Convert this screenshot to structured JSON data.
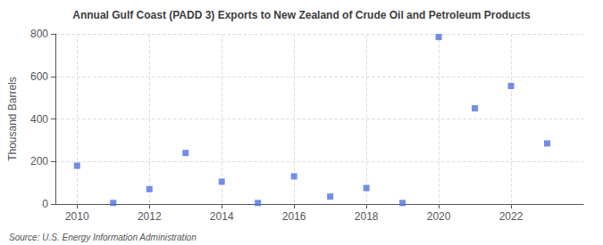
{
  "chart_data": {
    "type": "scatter",
    "title": "Annual Gulf Coast (PADD 3) Exports to New Zealand of Crude Oil and Petroleum Products",
    "ylabel": "Thousand Barrels",
    "annotations": [
      "Source: U.S. Energy Information Administration"
    ],
    "x": [
      2010,
      2011,
      2012,
      2013,
      2014,
      2015,
      2016,
      2017,
      2018,
      2019,
      2020,
      2021,
      2022,
      2023
    ],
    "values": [
      180,
      5,
      70,
      240,
      105,
      5,
      130,
      35,
      75,
      5,
      785,
      450,
      555,
      285
    ],
    "marker": "square",
    "xlim": [
      2009.4,
      2024.0
    ],
    "xticks": [
      2010,
      2012,
      2014,
      2016,
      2018,
      2020,
      2022
    ],
    "ylim": [
      0,
      800
    ],
    "yticks": [
      0,
      200,
      400,
      600,
      800
    ],
    "grid": true
  }
}
